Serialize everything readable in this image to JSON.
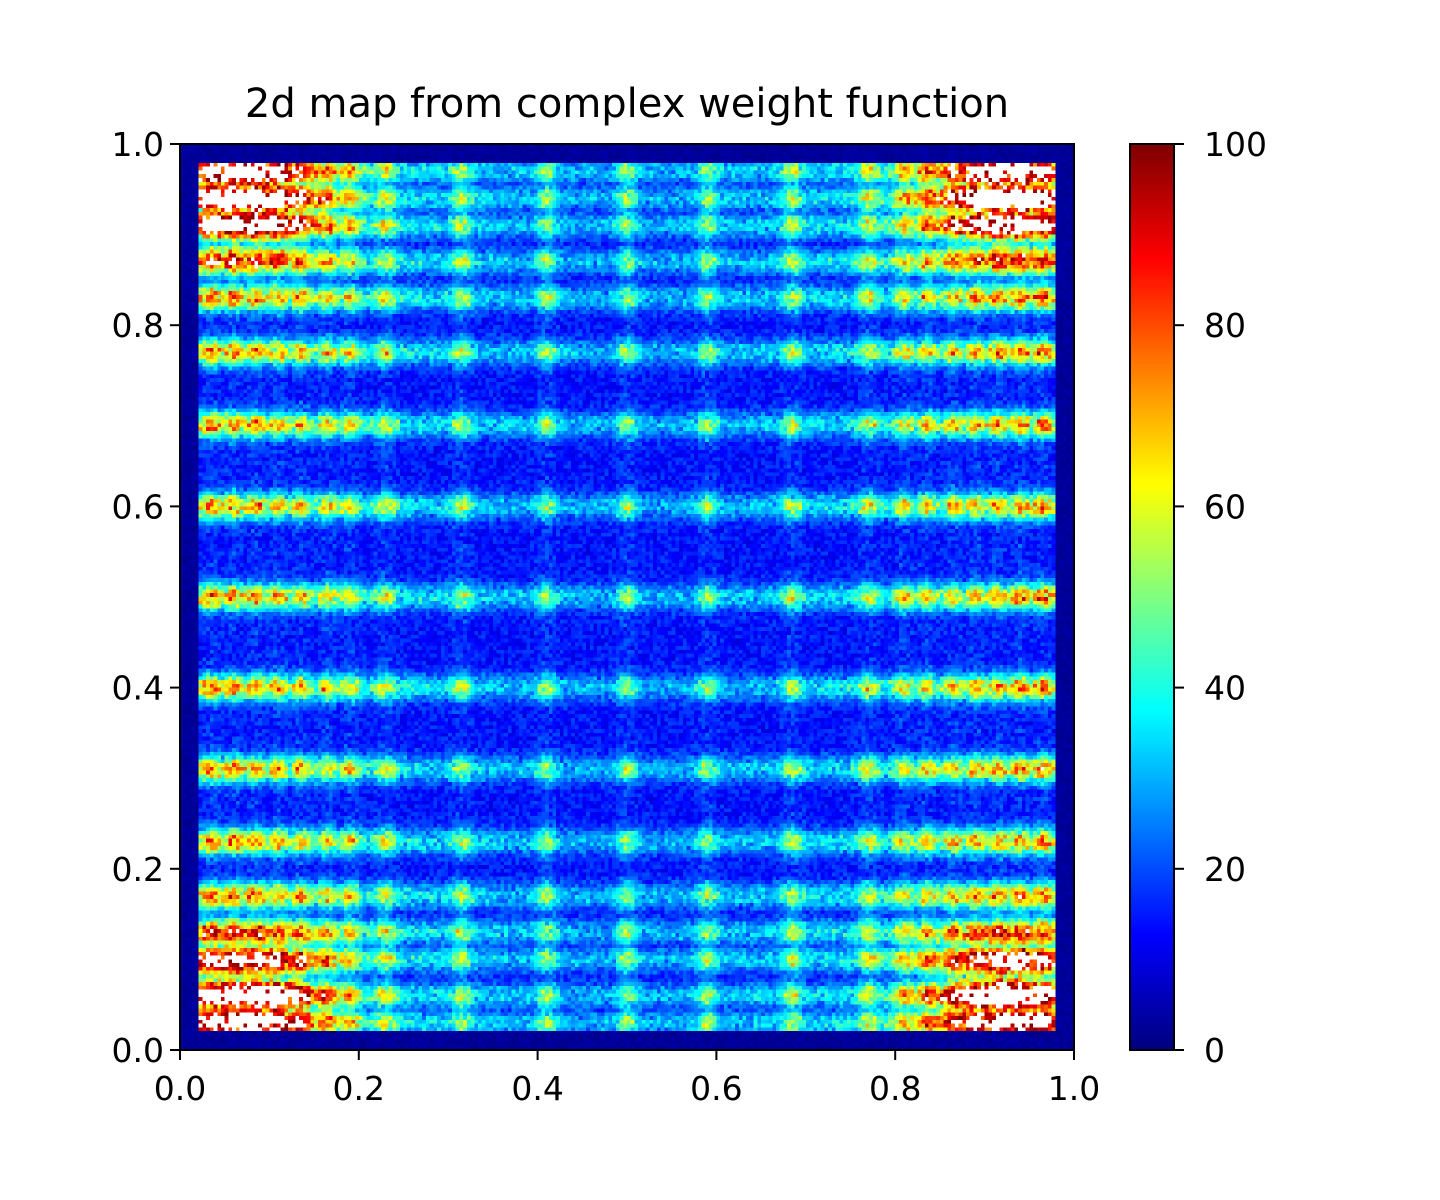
{
  "chart_data": {
    "type": "heatmap",
    "title": "2d map from complex weight function",
    "xlabel": "",
    "ylabel": "",
    "xlim": [
      0.0,
      1.0
    ],
    "ylim": [
      0.0,
      1.0
    ],
    "x_ticks": [
      "0.0",
      "0.2",
      "0.4",
      "0.6",
      "0.8",
      "1.0"
    ],
    "y_ticks": [
      "0.0",
      "0.2",
      "0.4",
      "0.6",
      "0.8",
      "1.0"
    ],
    "x_tick_values": [
      0.0,
      0.2,
      0.4,
      0.6,
      0.8,
      1.0
    ],
    "y_tick_values": [
      0.0,
      0.2,
      0.4,
      0.6,
      0.8,
      1.0
    ],
    "colorbar": {
      "vmin": 0,
      "vmax": 100,
      "ticks": [
        "0",
        "20",
        "40",
        "60",
        "80",
        "100"
      ],
      "tick_values": [
        0,
        20,
        40,
        60,
        80,
        100
      ],
      "colormap": "jet"
    },
    "grid": false,
    "bins": 240,
    "description_of_pattern": {
      "columns_x": [
        0.035,
        0.06,
        0.085,
        0.11,
        0.135,
        0.165,
        0.19,
        0.23,
        0.315,
        0.41,
        0.5,
        0.59,
        0.685,
        0.77,
        0.81,
        0.835,
        0.865,
        0.89,
        0.915,
        0.94,
        0.965
      ],
      "row_bands_y": [
        0.03,
        0.06,
        0.1,
        0.13,
        0.17,
        0.23,
        0.31,
        0.4,
        0.5,
        0.6,
        0.69,
        0.77,
        0.83,
        0.87,
        0.91,
        0.94,
        0.97
      ],
      "hotspot_corners": [
        [
          0.08,
          0.94
        ],
        [
          0.92,
          0.94
        ],
        [
          0.08,
          0.06
        ],
        [
          0.92,
          0.06
        ]
      ]
    }
  }
}
